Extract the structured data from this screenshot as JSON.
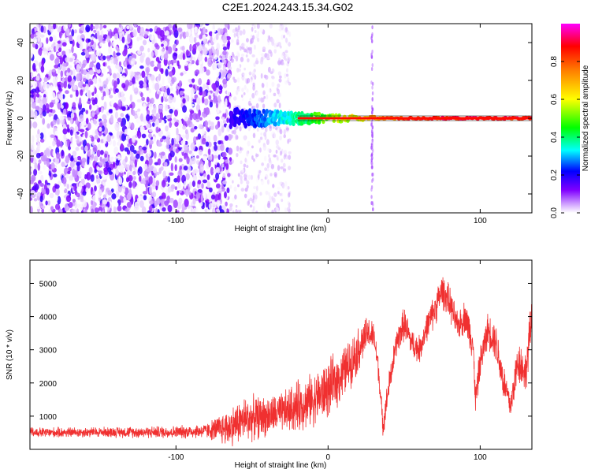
{
  "title": "C2E1.2024.243.15.34.G02",
  "chart_data": [
    {
      "type": "heatmap",
      "xlabel": "Height of straight line (km)",
      "ylabel": "Frequency (Hz)",
      "xlim": [
        -196,
        134
      ],
      "ylim": [
        -50,
        50
      ],
      "xticks": [
        "-100",
        "0",
        "100"
      ],
      "xtick_values": [
        -100,
        0,
        100
      ],
      "yticks": [
        "40",
        "20",
        "0",
        "-20",
        "-40"
      ],
      "ytick_values": [
        40,
        20,
        0,
        -20,
        -40
      ],
      "colorbar": {
        "label": "Normalized spectral amplitude",
        "range": [
          0,
          1
        ],
        "ticks": [
          "0.0",
          "0.2",
          "0.4",
          "0.6",
          "0.8"
        ],
        "tick_values": [
          0,
          0.2,
          0.4,
          0.6,
          0.8
        ],
        "colormap": [
          "#ffffff",
          "#cc99ff",
          "#8000ff",
          "#0000ff",
          "#00ffff",
          "#00ff00",
          "#ffff00",
          "#ff8000",
          "#ff0000",
          "#ff00ff"
        ]
      },
      "features": [
        {
          "name": "noise region",
          "x_range": [
            -196,
            -64
          ],
          "y_range": [
            -50,
            50
          ],
          "amplitude": [
            0.0,
            0.3
          ]
        },
        {
          "name": "faint noise region",
          "x_range": [
            -64,
            -25
          ],
          "y_range": [
            -50,
            50
          ],
          "amplitude": [
            0.0,
            0.12
          ]
        },
        {
          "name": "vertical streak",
          "x": 29,
          "amplitude": 0.1
        },
        {
          "name": "signal band",
          "x_range": [
            -64,
            134
          ],
          "center_frequency": 0,
          "amplitude": [
            0.3,
            0.95
          ]
        }
      ]
    },
    {
      "type": "line",
      "xlabel": "Height of straight line (km)",
      "ylabel": "SNR (10 * v/v)",
      "xlim": [
        -196,
        134
      ],
      "ylim": [
        0,
        5700
      ],
      "xticks": [
        "-100",
        "0",
        "100"
      ],
      "xtick_values": [
        -100,
        0,
        100
      ],
      "yticks": [
        "1000",
        "2000",
        "3000",
        "4000",
        "5000"
      ],
      "ytick_values": [
        1000,
        2000,
        3000,
        4000,
        5000
      ],
      "color": "#f03030",
      "envelope": {
        "x": [
          -196,
          -150,
          -100,
          -80,
          -66,
          -55,
          -40,
          -30,
          -20,
          -10,
          0,
          10,
          20,
          26,
          30,
          33,
          36,
          40,
          45,
          50,
          55,
          60,
          65,
          70,
          75,
          80,
          85,
          90,
          95,
          97,
          100,
          105,
          110,
          115,
          120,
          125,
          130,
          134
        ],
        "mean": [
          500,
          520,
          520,
          560,
          650,
          900,
          1000,
          1100,
          1300,
          1500,
          1800,
          2300,
          3000,
          3500,
          3400,
          2500,
          700,
          1900,
          3200,
          3800,
          3200,
          3000,
          3700,
          4200,
          4800,
          4400,
          3700,
          4000,
          3300,
          1500,
          2600,
          3600,
          3300,
          2100,
          1300,
          2700,
          2300,
          4000
        ],
        "spread": [
          180,
          180,
          220,
          260,
          650,
          800,
          700,
          700,
          900,
          900,
          1000,
          900,
          800,
          600,
          500,
          500,
          400,
          500,
          500,
          600,
          500,
          500,
          500,
          600,
          600,
          600,
          500,
          600,
          700,
          500,
          600,
          600,
          700,
          700,
          500,
          800,
          700,
          900
        ]
      }
    }
  ]
}
